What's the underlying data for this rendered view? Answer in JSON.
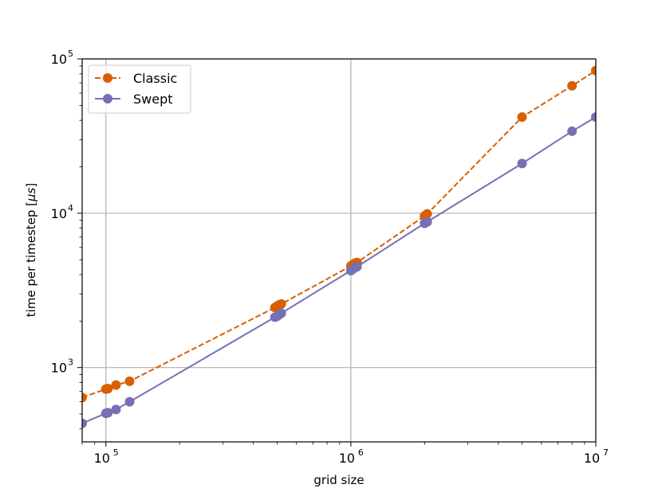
{
  "chart_data": {
    "type": "line",
    "xscale": "log",
    "yscale": "log",
    "xlim": [
      80000,
      10000000
    ],
    "ylim": [
      330,
      100000
    ],
    "xlabel": "grid size",
    "ylabel_prefix": "time per timestep [",
    "ylabel_unit": "μs",
    "ylabel_suffix": "]",
    "grid": true,
    "legend_position": "upper-left",
    "x_ticks": [
      {
        "value": 100000,
        "base": "10",
        "exp": "5"
      },
      {
        "value": 1000000,
        "base": "10",
        "exp": "6"
      },
      {
        "value": 10000000,
        "base": "10",
        "exp": "7"
      }
    ],
    "y_ticks": [
      {
        "value": 1000,
        "base": "10",
        "exp": "3"
      },
      {
        "value": 10000,
        "base": "10",
        "exp": "4"
      },
      {
        "value": 100000,
        "base": "10",
        "exp": "5"
      }
    ],
    "series": [
      {
        "name": "Classic",
        "color": "#d95f02",
        "style": "dashed",
        "marker": "circle",
        "points": [
          [
            80000,
            640
          ],
          [
            100000,
            725
          ],
          [
            102000,
            730
          ],
          [
            110000,
            770
          ],
          [
            125000,
            815
          ],
          [
            490000,
            2450
          ],
          [
            500000,
            2500
          ],
          [
            510000,
            2550
          ],
          [
            520000,
            2580
          ],
          [
            1000000,
            4550
          ],
          [
            1020000,
            4650
          ],
          [
            1040000,
            4750
          ],
          [
            1060000,
            4800
          ],
          [
            2000000,
            9600
          ],
          [
            2050000,
            9900
          ],
          [
            5000000,
            42000
          ],
          [
            8000000,
            67000
          ],
          [
            10000000,
            84000
          ]
        ]
      },
      {
        "name": "Swept",
        "color": "#7570b3",
        "style": "solid",
        "marker": "circle",
        "points": [
          [
            80000,
            435
          ],
          [
            100000,
            505
          ],
          [
            102000,
            510
          ],
          [
            110000,
            535
          ],
          [
            125000,
            600
          ],
          [
            490000,
            2120
          ],
          [
            500000,
            2150
          ],
          [
            510000,
            2200
          ],
          [
            520000,
            2250
          ],
          [
            1000000,
            4250
          ],
          [
            1020000,
            4350
          ],
          [
            1040000,
            4450
          ],
          [
            1060000,
            4500
          ],
          [
            2000000,
            8600
          ],
          [
            2050000,
            8800
          ],
          [
            5000000,
            21000
          ],
          [
            8000000,
            34000
          ],
          [
            10000000,
            42000
          ]
        ]
      }
    ]
  }
}
